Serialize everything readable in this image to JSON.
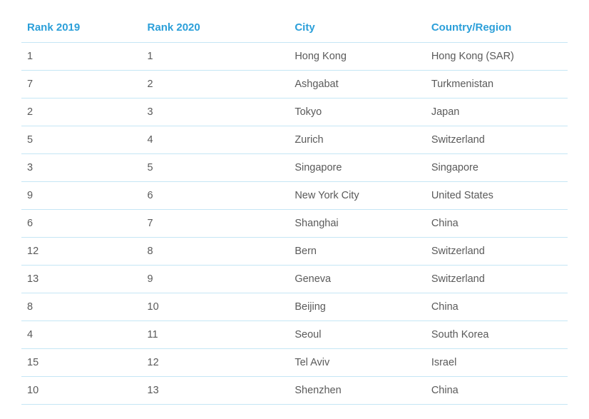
{
  "table": {
    "type": "table",
    "header_color": "#2b9fd9",
    "text_color": "#5a5a5a",
    "border_color": "#c5e6f5",
    "background_color": "#ffffff",
    "header_fontsize": 15,
    "cell_fontsize": 14.5,
    "columns": [
      {
        "key": "rank2019",
        "label": "Rank 2019",
        "width": "22%"
      },
      {
        "key": "rank2020",
        "label": "Rank 2020",
        "width": "27%"
      },
      {
        "key": "city",
        "label": "City",
        "width": "25%"
      },
      {
        "key": "country",
        "label": "Country/Region",
        "width": "26%"
      }
    ],
    "rows": [
      {
        "rank2019": "1",
        "rank2020": "1",
        "city": "Hong Kong",
        "country": "Hong Kong (SAR)"
      },
      {
        "rank2019": "7",
        "rank2020": "2",
        "city": "Ashgabat",
        "country": "Turkmenistan"
      },
      {
        "rank2019": "2",
        "rank2020": "3",
        "city": "Tokyo",
        "country": "Japan"
      },
      {
        "rank2019": "5",
        "rank2020": "4",
        "city": "Zurich",
        "country": "Switzerland"
      },
      {
        "rank2019": "3",
        "rank2020": "5",
        "city": "Singapore",
        "country": "Singapore"
      },
      {
        "rank2019": "9",
        "rank2020": "6",
        "city": "New York City",
        "country": "United States"
      },
      {
        "rank2019": "6",
        "rank2020": "7",
        "city": "Shanghai",
        "country": "China"
      },
      {
        "rank2019": "12",
        "rank2020": "8",
        "city": "Bern",
        "country": "Switzerland"
      },
      {
        "rank2019": "13",
        "rank2020": "9",
        "city": "Geneva",
        "country": "Switzerland"
      },
      {
        "rank2019": "8",
        "rank2020": "10",
        "city": "Beijing",
        "country": "China"
      },
      {
        "rank2019": "4",
        "rank2020": "11",
        "city": "Seoul",
        "country": "South Korea"
      },
      {
        "rank2019": "15",
        "rank2020": "12",
        "city": "Tel Aviv",
        "country": "Israel"
      },
      {
        "rank2019": "10",
        "rank2020": "13",
        "city": "Shenzhen",
        "country": "China"
      }
    ]
  }
}
